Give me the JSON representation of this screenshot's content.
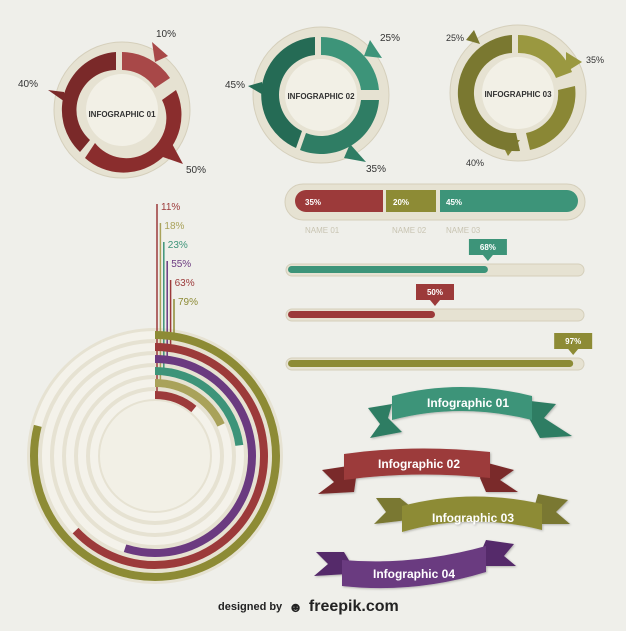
{
  "donuts": [
    {
      "title": "INFOGRAPHIC 01",
      "labels": [
        "10%",
        "40%",
        "50%"
      ]
    },
    {
      "title": "INFOGRAPHIC 02",
      "labels": [
        "25%",
        "45%",
        "35%"
      ]
    },
    {
      "title": "INFOGRAPHIC 03",
      "labels": [
        "25%",
        "35%",
        "40%"
      ]
    }
  ],
  "segmented_bar": {
    "segments": [
      {
        "value": "35%"
      },
      {
        "value": "20%"
      },
      {
        "value": "45%"
      }
    ],
    "names": [
      "NAME 01",
      "NAME 02",
      "NAME 03"
    ]
  },
  "progress_bars": [
    {
      "label": "68%",
      "value": 0.68,
      "color": "#3d9479"
    },
    {
      "label": "50%",
      "value": 0.5,
      "color": "#9c3a3a"
    },
    {
      "label": "97%",
      "value": 0.97,
      "color": "#8d8b35"
    }
  ],
  "rings": [
    {
      "label": "11%",
      "value": 0.11,
      "color": "#9c3a3a"
    },
    {
      "label": "18%",
      "value": 0.18,
      "color": "#a9a25a"
    },
    {
      "label": "23%",
      "value": 0.23,
      "color": "#3d9479"
    },
    {
      "label": "55%",
      "value": 0.55,
      "color": "#6b3a80"
    },
    {
      "label": "63%",
      "value": 0.63,
      "color": "#9c3a3a"
    },
    {
      "label": "79%",
      "value": 0.79,
      "color": "#8d8b35"
    }
  ],
  "ribbons": [
    {
      "label": "Infographic 01",
      "color": "#3d9479"
    },
    {
      "label": "Infographic 02",
      "color": "#9c3a3a"
    },
    {
      "label": "Infographic 03",
      "color": "#8d8b35"
    },
    {
      "label": "Infographic 04",
      "color": "#6b3a80"
    }
  ],
  "credit": {
    "prefix": "designed by",
    "brand": "freepik.com"
  }
}
